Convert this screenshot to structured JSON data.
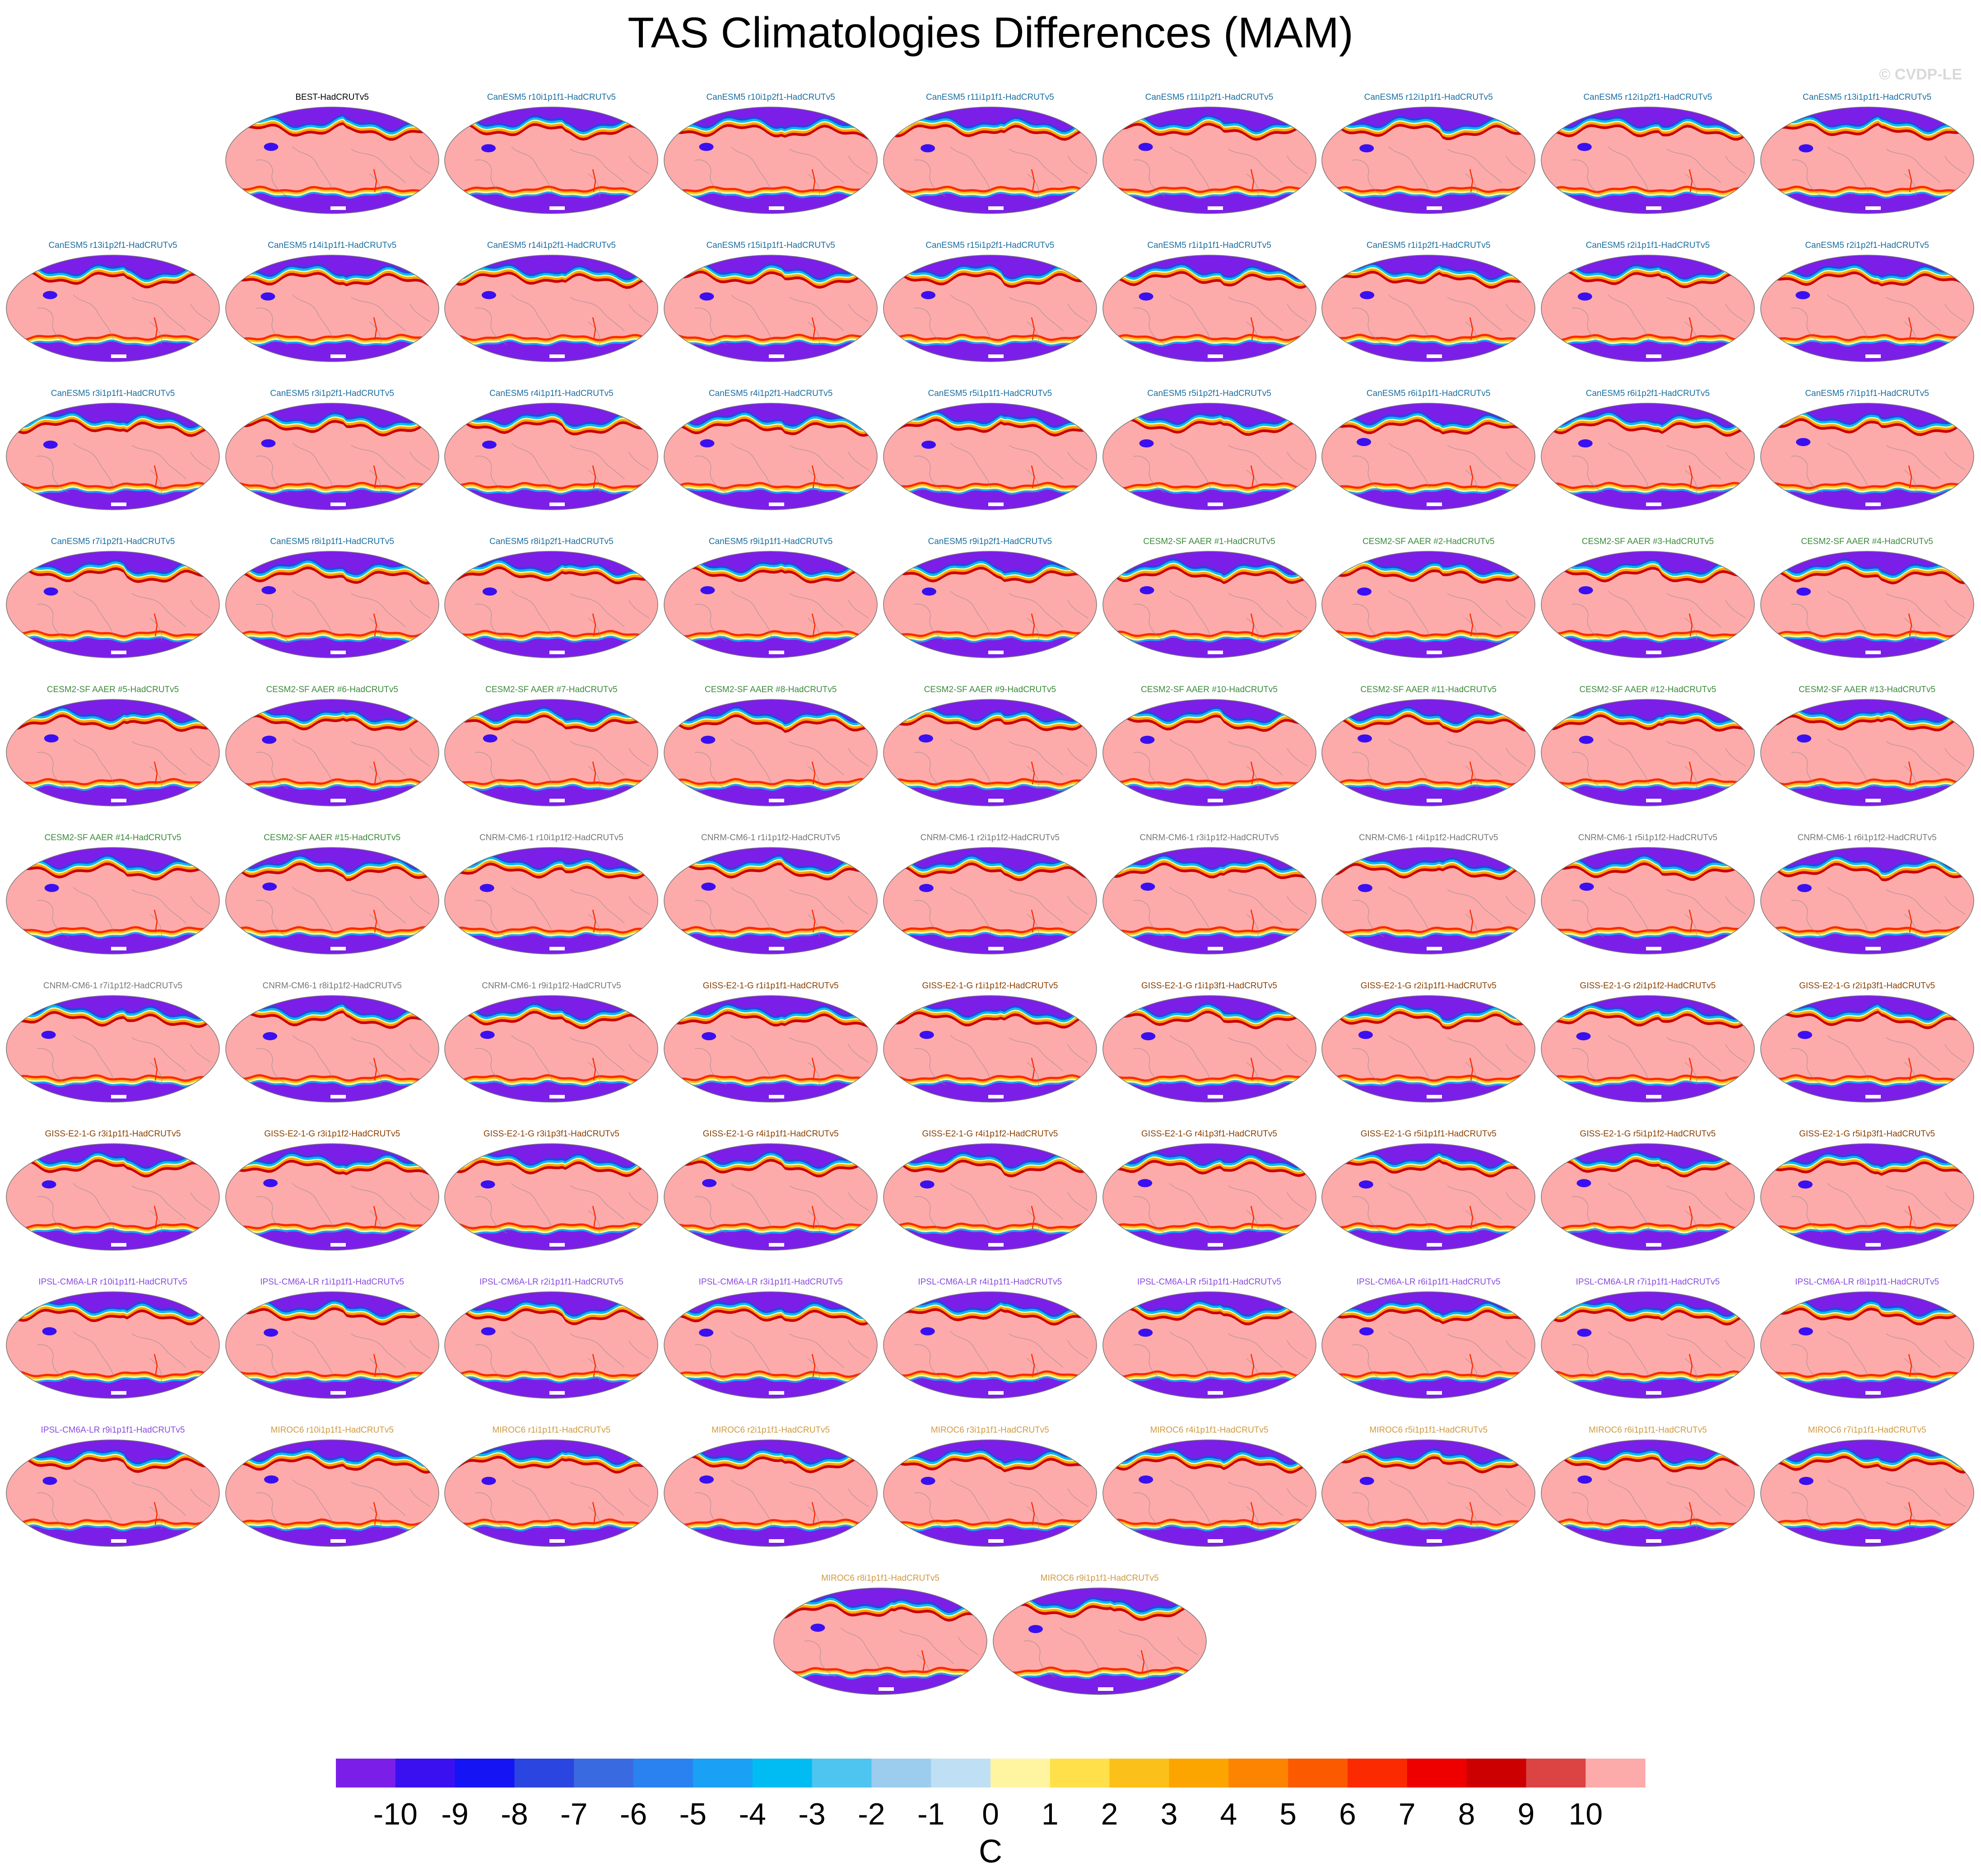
{
  "chart_data": {
    "type": "heatmap",
    "title": "TAS Climatologies Differences (MAM)",
    "watermark": "© CVDP-LE",
    "units": "C",
    "colorbar": {
      "ticks": [
        "-10",
        "-9",
        "-8",
        "-7",
        "-6",
        "-5",
        "-4",
        "-3",
        "-2",
        "-1",
        "0",
        "1",
        "2",
        "3",
        "4",
        "5",
        "6",
        "7",
        "8",
        "9",
        "10"
      ],
      "colors": [
        "#7b1fe8",
        "#3a10f0",
        "#1414f5",
        "#2b45e0",
        "#3a6ae0",
        "#2a82f0",
        "#1aa0f5",
        "#00bcf2",
        "#4ec4f0",
        "#9ccdee",
        "#bfe0f4",
        "#fff5a0",
        "#ffe04a",
        "#fcc01a",
        "#fca400",
        "#fc8400",
        "#fc5a00",
        "#fc2a00",
        "#ee0000",
        "#cc0000",
        "#dc4444",
        "#fdaaaa"
      ]
    },
    "groups": {
      "obs": "#000000",
      "canesm5": "#1a6ea0",
      "cesm2": "#3c8a3c",
      "cnrm": "#777777",
      "giss": "#8b4000",
      "ipsl": "#8a4ae0",
      "miroc": "#d09a40"
    },
    "panels": [
      {
        "label": "BEST-HadCRUTv5",
        "group": "obs"
      },
      {
        "label": "CanESM5 r10i1p1f1-HadCRUTv5",
        "group": "canesm5"
      },
      {
        "label": "CanESM5 r10i1p2f1-HadCRUTv5",
        "group": "canesm5"
      },
      {
        "label": "CanESM5 r11i1p1f1-HadCRUTv5",
        "group": "canesm5"
      },
      {
        "label": "CanESM5 r11i1p2f1-HadCRUTv5",
        "group": "canesm5"
      },
      {
        "label": "CanESM5 r12i1p1f1-HadCRUTv5",
        "group": "canesm5"
      },
      {
        "label": "CanESM5 r12i1p2f1-HadCRUTv5",
        "group": "canesm5"
      },
      {
        "label": "CanESM5 r13i1p1f1-HadCRUTv5",
        "group": "canesm5"
      },
      {
        "label": "CanESM5 r13i1p2f1-HadCRUTv5",
        "group": "canesm5"
      },
      {
        "label": "CanESM5 r14i1p1f1-HadCRUTv5",
        "group": "canesm5"
      },
      {
        "label": "CanESM5 r14i1p2f1-HadCRUTv5",
        "group": "canesm5"
      },
      {
        "label": "CanESM5 r15i1p1f1-HadCRUTv5",
        "group": "canesm5"
      },
      {
        "label": "CanESM5 r15i1p2f1-HadCRUTv5",
        "group": "canesm5"
      },
      {
        "label": "CanESM5 r1i1p1f1-HadCRUTv5",
        "group": "canesm5"
      },
      {
        "label": "CanESM5 r1i1p2f1-HadCRUTv5",
        "group": "canesm5"
      },
      {
        "label": "CanESM5 r2i1p1f1-HadCRUTv5",
        "group": "canesm5"
      },
      {
        "label": "CanESM5 r2i1p2f1-HadCRUTv5",
        "group": "canesm5"
      },
      {
        "label": "CanESM5 r3i1p1f1-HadCRUTv5",
        "group": "canesm5"
      },
      {
        "label": "CanESM5 r3i1p2f1-HadCRUTv5",
        "group": "canesm5"
      },
      {
        "label": "CanESM5 r4i1p1f1-HadCRUTv5",
        "group": "canesm5"
      },
      {
        "label": "CanESM5 r4i1p2f1-HadCRUTv5",
        "group": "canesm5"
      },
      {
        "label": "CanESM5 r5i1p1f1-HadCRUTv5",
        "group": "canesm5"
      },
      {
        "label": "CanESM5 r5i1p2f1-HadCRUTv5",
        "group": "canesm5"
      },
      {
        "label": "CanESM5 r6i1p1f1-HadCRUTv5",
        "group": "canesm5"
      },
      {
        "label": "CanESM5 r6i1p2f1-HadCRUTv5",
        "group": "canesm5"
      },
      {
        "label": "CanESM5 r7i1p1f1-HadCRUTv5",
        "group": "canesm5"
      },
      {
        "label": "CanESM5 r7i1p2f1-HadCRUTv5",
        "group": "canesm5"
      },
      {
        "label": "CanESM5 r8i1p1f1-HadCRUTv5",
        "group": "canesm5"
      },
      {
        "label": "CanESM5 r8i1p2f1-HadCRUTv5",
        "group": "canesm5"
      },
      {
        "label": "CanESM5 r9i1p1f1-HadCRUTv5",
        "group": "canesm5"
      },
      {
        "label": "CanESM5 r9i1p2f1-HadCRUTv5",
        "group": "canesm5"
      },
      {
        "label": "CESM2-SF AAER #1-HadCRUTv5",
        "group": "cesm2"
      },
      {
        "label": "CESM2-SF AAER #2-HadCRUTv5",
        "group": "cesm2"
      },
      {
        "label": "CESM2-SF AAER #3-HadCRUTv5",
        "group": "cesm2"
      },
      {
        "label": "CESM2-SF AAER #4-HadCRUTv5",
        "group": "cesm2"
      },
      {
        "label": "CESM2-SF AAER #5-HadCRUTv5",
        "group": "cesm2"
      },
      {
        "label": "CESM2-SF AAER #6-HadCRUTv5",
        "group": "cesm2"
      },
      {
        "label": "CESM2-SF AAER #7-HadCRUTv5",
        "group": "cesm2"
      },
      {
        "label": "CESM2-SF AAER #8-HadCRUTv5",
        "group": "cesm2"
      },
      {
        "label": "CESM2-SF AAER #9-HadCRUTv5",
        "group": "cesm2"
      },
      {
        "label": "CESM2-SF AAER #10-HadCRUTv5",
        "group": "cesm2"
      },
      {
        "label": "CESM2-SF AAER #11-HadCRUTv5",
        "group": "cesm2"
      },
      {
        "label": "CESM2-SF AAER #12-HadCRUTv5",
        "group": "cesm2"
      },
      {
        "label": "CESM2-SF AAER #13-HadCRUTv5",
        "group": "cesm2"
      },
      {
        "label": "CESM2-SF AAER #14-HadCRUTv5",
        "group": "cesm2"
      },
      {
        "label": "CESM2-SF AAER #15-HadCRUTv5",
        "group": "cesm2"
      },
      {
        "label": "CNRM-CM6-1 r10i1p1f2-HadCRUTv5",
        "group": "cnrm"
      },
      {
        "label": "CNRM-CM6-1 r1i1p1f2-HadCRUTv5",
        "group": "cnrm"
      },
      {
        "label": "CNRM-CM6-1 r2i1p1f2-HadCRUTv5",
        "group": "cnrm"
      },
      {
        "label": "CNRM-CM6-1 r3i1p1f2-HadCRUTv5",
        "group": "cnrm"
      },
      {
        "label": "CNRM-CM6-1 r4i1p1f2-HadCRUTv5",
        "group": "cnrm"
      },
      {
        "label": "CNRM-CM6-1 r5i1p1f2-HadCRUTv5",
        "group": "cnrm"
      },
      {
        "label": "CNRM-CM6-1 r6i1p1f2-HadCRUTv5",
        "group": "cnrm"
      },
      {
        "label": "CNRM-CM6-1 r7i1p1f2-HadCRUTv5",
        "group": "cnrm"
      },
      {
        "label": "CNRM-CM6-1 r8i1p1f2-HadCRUTv5",
        "group": "cnrm"
      },
      {
        "label": "CNRM-CM6-1 r9i1p1f2-HadCRUTv5",
        "group": "cnrm"
      },
      {
        "label": "GISS-E2-1-G r1i1p1f1-HadCRUTv5",
        "group": "giss"
      },
      {
        "label": "GISS-E2-1-G r1i1p1f2-HadCRUTv5",
        "group": "giss"
      },
      {
        "label": "GISS-E2-1-G r1i1p3f1-HadCRUTv5",
        "group": "giss"
      },
      {
        "label": "GISS-E2-1-G r2i1p1f1-HadCRUTv5",
        "group": "giss"
      },
      {
        "label": "GISS-E2-1-G r2i1p1f2-HadCRUTv5",
        "group": "giss"
      },
      {
        "label": "GISS-E2-1-G r2i1p3f1-HadCRUTv5",
        "group": "giss"
      },
      {
        "label": "GISS-E2-1-G r3i1p1f1-HadCRUTv5",
        "group": "giss"
      },
      {
        "label": "GISS-E2-1-G r3i1p1f2-HadCRUTv5",
        "group": "giss"
      },
      {
        "label": "GISS-E2-1-G r3i1p3f1-HadCRUTv5",
        "group": "giss"
      },
      {
        "label": "GISS-E2-1-G r4i1p1f1-HadCRUTv5",
        "group": "giss"
      },
      {
        "label": "GISS-E2-1-G r4i1p1f2-HadCRUTv5",
        "group": "giss"
      },
      {
        "label": "GISS-E2-1-G r4i1p3f1-HadCRUTv5",
        "group": "giss"
      },
      {
        "label": "GISS-E2-1-G r5i1p1f1-HadCRUTv5",
        "group": "giss"
      },
      {
        "label": "GISS-E2-1-G r5i1p1f2-HadCRUTv5",
        "group": "giss"
      },
      {
        "label": "GISS-E2-1-G r5i1p3f1-HadCRUTv5",
        "group": "giss"
      },
      {
        "label": "IPSL-CM6A-LR r10i1p1f1-HadCRUTv5",
        "group": "ipsl"
      },
      {
        "label": "IPSL-CM6A-LR r1i1p1f1-HadCRUTv5",
        "group": "ipsl"
      },
      {
        "label": "IPSL-CM6A-LR r2i1p1f1-HadCRUTv5",
        "group": "ipsl"
      },
      {
        "label": "IPSL-CM6A-LR r3i1p1f1-HadCRUTv5",
        "group": "ipsl"
      },
      {
        "label": "IPSL-CM6A-LR r4i1p1f1-HadCRUTv5",
        "group": "ipsl"
      },
      {
        "label": "IPSL-CM6A-LR r5i1p1f1-HadCRUTv5",
        "group": "ipsl"
      },
      {
        "label": "IPSL-CM6A-LR r6i1p1f1-HadCRUTv5",
        "group": "ipsl"
      },
      {
        "label": "IPSL-CM6A-LR r7i1p1f1-HadCRUTv5",
        "group": "ipsl"
      },
      {
        "label": "IPSL-CM6A-LR r8i1p1f1-HadCRUTv5",
        "group": "ipsl"
      },
      {
        "label": "IPSL-CM6A-LR r9i1p1f1-HadCRUTv5",
        "group": "ipsl"
      },
      {
        "label": "MIROC6 r10i1p1f1-HadCRUTv5",
        "group": "miroc"
      },
      {
        "label": "MIROC6 r1i1p1f1-HadCRUTv5",
        "group": "miroc"
      },
      {
        "label": "MIROC6 r2i1p1f1-HadCRUTv5",
        "group": "miroc"
      },
      {
        "label": "MIROC6 r3i1p1f1-HadCRUTv5",
        "group": "miroc"
      },
      {
        "label": "MIROC6 r4i1p1f1-HadCRUTv5",
        "group": "miroc"
      },
      {
        "label": "MIROC6 r5i1p1f1-HadCRUTv5",
        "group": "miroc"
      },
      {
        "label": "MIROC6 r6i1p1f1-HadCRUTv5",
        "group": "miroc"
      },
      {
        "label": "MIROC6 r7i1p1f1-HadCRUTv5",
        "group": "miroc"
      },
      {
        "label": "MIROC6 r8i1p1f1-HadCRUTv5",
        "group": "miroc"
      },
      {
        "label": "MIROC6 r9i1p1f1-HadCRUTv5",
        "group": "miroc"
      }
    ]
  }
}
